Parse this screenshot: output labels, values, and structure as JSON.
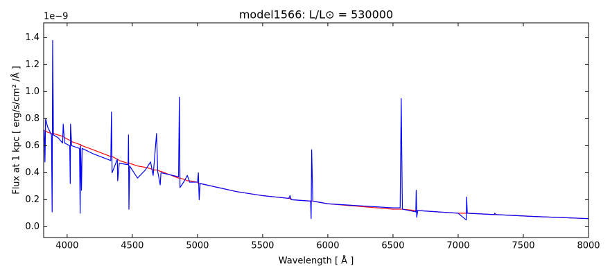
{
  "chart_data": {
    "type": "line",
    "title": "model1566: L/L⊙ = 530000",
    "x_label": "Wavelength [ Å ]",
    "y_label": "Flux at 1 kpc [ erg/s/cm² /Å ]",
    "y_offset_label": "1e−9",
    "x": [
      3820,
      3825,
      3830,
      3835,
      3850,
      3880,
      3885,
      3889,
      3895,
      3930,
      3965,
      3970,
      3980,
      4020,
      4024,
      4026,
      4035,
      4095,
      4100,
      4103,
      4110,
      4115,
      4200,
      4335,
      4340,
      4345,
      4385,
      4388,
      4400,
      4468,
      4471,
      4474,
      4480,
      4540,
      4600,
      4640,
      4660,
      4686,
      4695,
      4714,
      4720,
      4855,
      4861,
      4866,
      4900,
      4922,
      4940,
      5000,
      5007,
      5013,
      5020,
      5300,
      5500,
      5700,
      5710,
      5720,
      5868,
      5872,
      5876,
      5885,
      6000,
      6500,
      6555,
      6563,
      6572,
      6675,
      6678,
      6682,
      6690,
      7000,
      7062,
      7065,
      7070,
      7278,
      7281,
      7290,
      7600,
      8000
    ],
    "series": [
      {
        "color": "#ff0000",
        "values": [
          0.72,
          0.71,
          0.71,
          0.71,
          0.7,
          0.69,
          0.69,
          0.69,
          0.69,
          0.68,
          0.67,
          0.67,
          0.66,
          0.64,
          0.64,
          0.64,
          0.63,
          0.61,
          0.61,
          0.61,
          0.6,
          0.6,
          0.57,
          0.52,
          0.52,
          0.52,
          0.5,
          0.5,
          0.49,
          0.47,
          0.47,
          0.47,
          0.47,
          0.45,
          0.44,
          0.43,
          0.42,
          0.42,
          0.42,
          0.41,
          0.41,
          0.36,
          0.36,
          0.36,
          0.35,
          0.34,
          0.34,
          0.33,
          0.32,
          0.32,
          0.32,
          0.26,
          0.23,
          0.21,
          0.21,
          0.2,
          0.19,
          0.19,
          0.19,
          0.19,
          0.17,
          0.13,
          0.13,
          0.13,
          0.13,
          0.12,
          0.12,
          0.12,
          0.12,
          0.1,
          0.1,
          0.1,
          0.1,
          0.09,
          0.09,
          0.09,
          0.075,
          0.06
        ]
      },
      {
        "color": "#0000ff",
        "values": [
          0.72,
          0.7,
          0.48,
          0.8,
          0.74,
          0.68,
          0.11,
          1.38,
          0.68,
          0.66,
          0.62,
          0.76,
          0.62,
          0.6,
          0.32,
          0.76,
          0.6,
          0.58,
          0.1,
          0.6,
          0.27,
          0.58,
          0.54,
          0.49,
          0.85,
          0.4,
          0.5,
          0.34,
          0.47,
          0.46,
          0.68,
          0.13,
          0.45,
          0.36,
          0.42,
          0.48,
          0.38,
          0.69,
          0.41,
          0.31,
          0.4,
          0.37,
          0.96,
          0.29,
          0.34,
          0.38,
          0.33,
          0.33,
          0.4,
          0.2,
          0.32,
          0.26,
          0.23,
          0.21,
          0.23,
          0.2,
          0.19,
          0.06,
          0.57,
          0.19,
          0.17,
          0.14,
          0.14,
          0.95,
          0.13,
          0.11,
          0.27,
          0.07,
          0.12,
          0.1,
          0.05,
          0.22,
          0.1,
          0.09,
          0.1,
          0.09,
          0.075,
          0.06
        ]
      }
    ],
    "xlim": [
      3820,
      8000
    ],
    "ylim": [
      -0.08,
      1.51
    ],
    "xticks": [
      4000,
      4500,
      5000,
      5500,
      6000,
      6500,
      7000,
      7500,
      8000
    ],
    "yticks": [
      {
        "value": 0,
        "label": "0.0"
      },
      0.2,
      0.4,
      0.6,
      0.8,
      {
        "value": 1,
        "label": "1.0"
      },
      1.2,
      1.4
    ]
  }
}
